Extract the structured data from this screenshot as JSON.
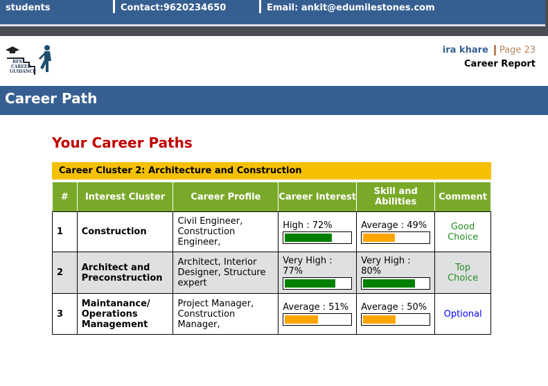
{
  "topbar": {
    "left": "students",
    "contact": "Contact:9620234650",
    "email": "Email: ankit@edumilestones.com"
  },
  "logo": {
    "text": "BEST CAREER GUIDANCE"
  },
  "header": {
    "name": "ira khare",
    "page": "Page 23",
    "report": "Career Report"
  },
  "band": "Career Path",
  "title": "Your Career Paths",
  "cluster": "Career Cluster 2: Architecture and Construction",
  "columns": [
    "#",
    "Interest Cluster",
    "Career Profile",
    "Career Interest",
    "Skill and Abilities",
    "Comment"
  ],
  "colors": {
    "green": "#008000",
    "orange": "#ffa500",
    "blue_comment": "#0000ff"
  },
  "rows": [
    {
      "num": "1",
      "cluster": "Construction",
      "profile": "Civil Engineer, Construction Engineer,",
      "interest": "High : 72%",
      "interest_pct": 72,
      "interest_color": "#008000",
      "skill": "Average : 49%",
      "skill_pct": 49,
      "skill_color": "#ffa500",
      "comment": "Good Choice",
      "comment_color": "#228b22"
    },
    {
      "num": "2",
      "cluster": "Architect and Preconstruction",
      "profile": "Architect, Interior Designer, Structure expert",
      "interest": "Very High : 77%",
      "interest_pct": 77,
      "interest_color": "#008000",
      "skill": "Very High : 80%",
      "skill_pct": 80,
      "skill_color": "#008000",
      "comment": "Top Choice",
      "comment_color": "#228b22"
    },
    {
      "num": "3",
      "cluster": "Maintanance/ Operations Management",
      "profile": "Project Manager, Construction Manager,",
      "interest": "Average : 51%",
      "interest_pct": 51,
      "interest_color": "#ffa500",
      "skill": "Average : 50%",
      "skill_pct": 50,
      "skill_color": "#ffa500",
      "comment": "Optional",
      "comment_color": "#0000ff"
    }
  ]
}
